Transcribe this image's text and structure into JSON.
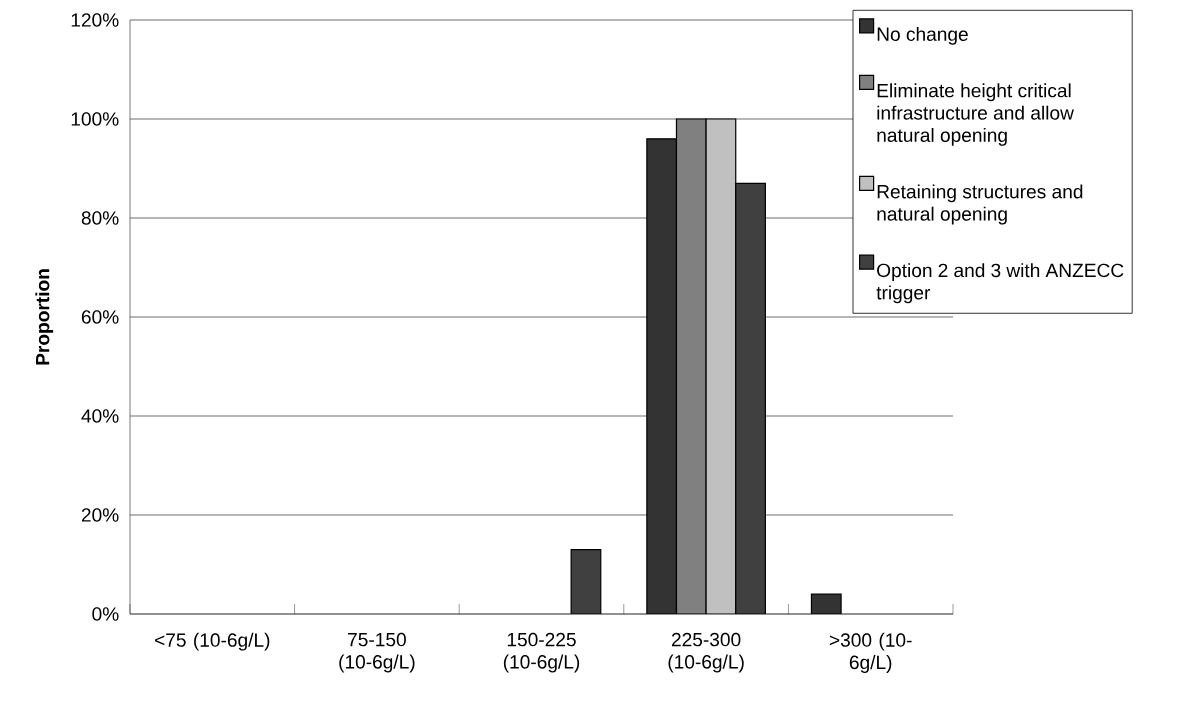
{
  "chart_data": {
    "type": "bar",
    "ylabel": "Proportion",
    "categories": [
      "<75  (10-6g/L)",
      "75-150  (10-6g/L)",
      "150-225 (10-6g/L)",
      "225-300 (10-6g/L)",
      ">300  (10-6g/L)"
    ],
    "series": [
      {
        "name": "No change",
        "color": "#333333",
        "values": [
          null,
          null,
          null,
          96,
          4
        ]
      },
      {
        "name": "Eliminate height critical infrastructure and allow natural opening",
        "color": "#808080",
        "values": [
          null,
          null,
          null,
          100,
          null
        ]
      },
      {
        "name": "Retaining structures and natural opening",
        "color": "#c0c0c0",
        "values": [
          null,
          null,
          null,
          100,
          null
        ]
      },
      {
        "name": "Option 2 and 3 with ANZECC trigger",
        "color": "#404040",
        "values": [
          null,
          null,
          13,
          87,
          null
        ]
      }
    ],
    "ylim": [
      0,
      120
    ],
    "yticks": [
      {
        "value": 0,
        "label": "0%"
      },
      {
        "value": 20,
        "label": "20%"
      },
      {
        "value": 40,
        "label": "40%"
      },
      {
        "value": 60,
        "label": "60%"
      },
      {
        "value": 80,
        "label": "80%"
      },
      {
        "value": 100,
        "label": "100%"
      },
      {
        "value": 120,
        "label": "120%"
      }
    ],
    "grid": "y",
    "legend": "top right"
  }
}
